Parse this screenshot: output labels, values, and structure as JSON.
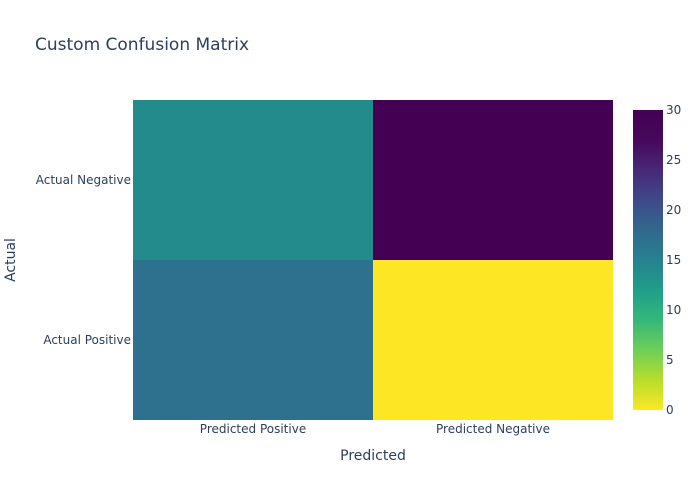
{
  "chart_data": {
    "type": "heatmap",
    "title": "Custom Confusion Matrix",
    "xlabel": "Predicted",
    "ylabel": "Actual",
    "x_categories": [
      "Predicted Positive",
      "Predicted Negative"
    ],
    "y_categories": [
      "Actual Negative",
      "Actual Positive"
    ],
    "z": [
      [
        14,
        30
      ],
      [
        17,
        0
      ]
    ],
    "zrange": [
      0,
      30
    ],
    "colorscale": "viridis (reversed)",
    "colorbar": {
      "ticks": [
        0,
        5,
        10,
        15,
        20,
        25,
        30
      ]
    }
  }
}
